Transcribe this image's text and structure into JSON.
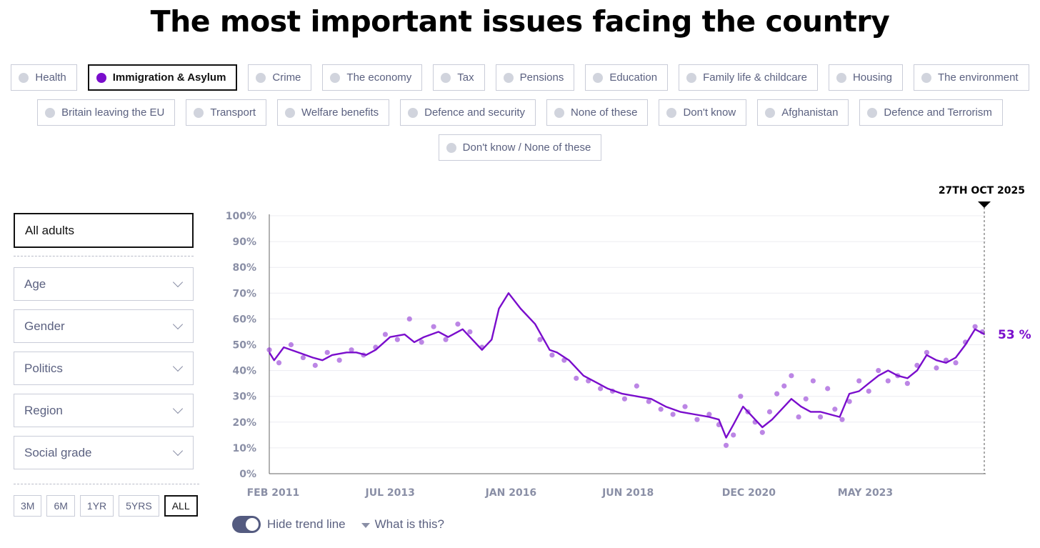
{
  "title": "The most important issues facing the country",
  "issues_rows": [
    [
      "Health",
      "Immigration & Asylum",
      "Crime",
      "The economy",
      "Tax",
      "Pensions",
      "Education",
      "Family life & childcare",
      "Housing",
      "The environment"
    ],
    [
      "Britain leaving the EU",
      "Transport",
      "Welfare benefits",
      "Defence and security",
      "None of these",
      "Don't know",
      "Afghanistan",
      "Defence and Terrorism"
    ],
    [
      "Don't know / None of these"
    ]
  ],
  "selected_issue": "Immigration & Asylum",
  "audience": "All adults",
  "filters": [
    "Age",
    "Gender",
    "Politics",
    "Region",
    "Social grade"
  ],
  "ranges": [
    "3M",
    "6M",
    "1YR",
    "5YRS",
    "ALL"
  ],
  "active_range": "ALL",
  "controls": {
    "hide_trend": "Hide trend line",
    "help": "What is this?"
  },
  "colors": {
    "accent": "#7a0dcc",
    "axis_text": "#8a8fa6",
    "chip_border": "#c9ccd8"
  },
  "chart_data": {
    "type": "line",
    "series_color": "#7a0dcc",
    "ylim": [
      0,
      100
    ],
    "yticks": [
      "0%",
      "10%",
      "20%",
      "30%",
      "40%",
      "50%",
      "60%",
      "70%",
      "80%",
      "90%",
      "100%"
    ],
    "xtick_labels": [
      "FEB 2011",
      "JUL 2013",
      "JAN 2016",
      "JUN 2018",
      "DEC 2020",
      "MAY 2023"
    ],
    "xtick_values": [
      2011.08,
      2013.5,
      2016.0,
      2018.42,
      2020.92,
      2023.33
    ],
    "xlim": [
      2011.0,
      2025.82
    ],
    "latest_date_label": "27TH OCT 2025",
    "latest_value_label": "53 %",
    "trend": {
      "x": [
        2011.0,
        2011.1,
        2011.3,
        2011.6,
        2011.9,
        2012.1,
        2012.3,
        2012.6,
        2012.8,
        2013.0,
        2013.2,
        2013.5,
        2013.8,
        2014.0,
        2014.2,
        2014.5,
        2014.7,
        2015.0,
        2015.2,
        2015.4,
        2015.6,
        2015.75,
        2015.95,
        2016.2,
        2016.5,
        2016.8,
        2016.95,
        2017.2,
        2017.5,
        2017.8,
        2018.0,
        2018.3,
        2018.6,
        2018.9,
        2019.2,
        2019.5,
        2019.8,
        2020.1,
        2020.3,
        2020.45,
        2020.6,
        2020.8,
        2021.0,
        2021.2,
        2021.4,
        2021.6,
        2021.8,
        2022.0,
        2022.2,
        2022.4,
        2022.6,
        2022.8,
        2023.0,
        2023.2,
        2023.4,
        2023.6,
        2023.8,
        2024.0,
        2024.2,
        2024.4,
        2024.6,
        2024.8,
        2025.0,
        2025.2,
        2025.4,
        2025.6,
        2025.8
      ],
      "y": [
        47,
        44,
        49,
        47,
        45,
        44,
        46,
        47,
        47,
        46,
        48,
        53,
        54,
        51,
        53,
        55,
        53,
        56,
        52,
        48,
        52,
        64,
        70,
        64,
        58,
        48,
        47,
        44,
        38,
        35,
        33,
        31,
        30,
        29,
        26,
        24,
        23,
        22,
        21,
        14,
        19,
        26,
        22,
        18,
        21,
        25,
        29,
        26,
        24,
        24,
        23,
        22,
        31,
        32,
        35,
        38,
        40,
        38,
        37,
        40,
        46,
        44,
        43,
        45,
        50,
        56,
        54
      ]
    },
    "scatter": {
      "x": [
        2011.0,
        2011.2,
        2011.45,
        2011.7,
        2011.95,
        2012.2,
        2012.45,
        2012.7,
        2012.95,
        2013.2,
        2013.4,
        2013.65,
        2013.9,
        2014.15,
        2014.4,
        2014.65,
        2014.9,
        2015.15,
        2015.4,
        2016.6,
        2016.85,
        2017.1,
        2017.35,
        2017.6,
        2017.85,
        2018.1,
        2018.35,
        2018.6,
        2018.85,
        2019.1,
        2019.35,
        2019.6,
        2019.85,
        2020.1,
        2020.3,
        2020.45,
        2020.6,
        2020.75,
        2020.9,
        2021.05,
        2021.2,
        2021.35,
        2021.5,
        2021.65,
        2021.8,
        2021.95,
        2022.1,
        2022.25,
        2022.4,
        2022.55,
        2022.7,
        2022.85,
        2023.0,
        2023.2,
        2023.4,
        2023.6,
        2023.8,
        2024.0,
        2024.2,
        2024.4,
        2024.6,
        2024.8,
        2025.0,
        2025.2,
        2025.4,
        2025.6,
        2025.75
      ],
      "y": [
        48,
        43,
        50,
        45,
        42,
        47,
        44,
        48,
        46,
        49,
        54,
        52,
        60,
        51,
        57,
        52,
        58,
        55,
        49,
        52,
        46,
        44,
        37,
        36,
        33,
        32,
        29,
        34,
        28,
        25,
        23,
        26,
        21,
        23,
        19,
        11,
        15,
        30,
        24,
        20,
        16,
        24,
        31,
        34,
        38,
        22,
        29,
        36,
        22,
        33,
        25,
        21,
        28,
        36,
        32,
        40,
        36,
        38,
        35,
        42,
        47,
        41,
        44,
        43,
        51,
        57,
        55
      ]
    }
  }
}
